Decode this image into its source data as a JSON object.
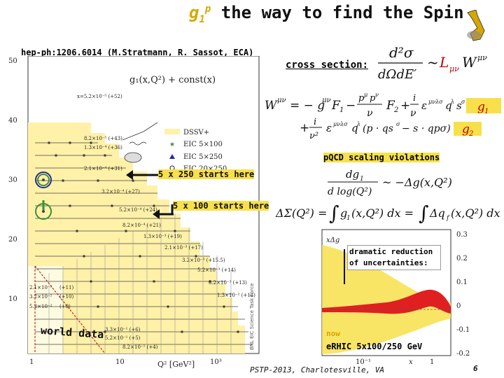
{
  "title": {
    "g1": "g",
    "sub": "1",
    "sup": "p",
    "rest": " the way to find the Spin"
  },
  "reference": "hep-ph:1206.6014 (M.Stratmann, R. Sassot, ECA)",
  "cross_section_label": "cross section:",
  "formulas": {
    "cross_section": "d²σ / dΩdE′ ~ L_μν W^μν",
    "hadron_tensor": "W^μν = −g^μν F1 − p^μ p^ν/ν F2 + i/ν ε^μνλσ q^λ s^σ g1",
    "hadron_tensor_line2": "+ i/ν² ε^μνλσ q^λ (p·qs^σ − s·qpσ) g2",
    "scaling": "dg1/d log(Q²) ~ −Δg(x,Q²)",
    "delta_sigma": "ΔΣ(Q²) = ∫ g1(x,Q²) dx = ∫ Δq_f(x,Q²) dx"
  },
  "pqcd_label": "pQCD scaling violations",
  "annotations": {
    "start_250": "5 x 250 starts here",
    "start_100": "5 x 100 starts here",
    "world_data": "world data",
    "dramatic": "dramatic reduction of uncertainties:",
    "now": "now",
    "erhic": "eRHIC 5x100/250 GeV"
  },
  "footer": "PSTP-2013, Charlotesville, VA",
  "page_number": "6",
  "left_plot": {
    "y_label": "g₁(x,Q²) + const(x)",
    "y_ticks": [
      "50",
      "40",
      "30",
      "20",
      "10"
    ],
    "x_ticks": [
      "1",
      "10",
      "10³"
    ],
    "x_label": "Q² [GeV²]",
    "legend": [
      "DSSV+",
      "EIC 5×100",
      "EIC 5×250",
      "EIC 20×250"
    ],
    "x_annotations": [
      "x=5.2×10⁻⁵ (+52)",
      "8.2×10⁻⁵ (+43)",
      "1.3×10⁻⁴ (+36)",
      "2.1×10⁻⁴ (+31)",
      "3.2×10⁻⁴ (+27)",
      "5.2×10⁻⁴ (+24)",
      "8.2×10⁻⁴ (+21)",
      "1.3×10⁻³ (+19)",
      "2.1×10⁻³ (+17)",
      "3.2×10⁻³ (+15.5)",
      "5.2×10⁻³ (+14)",
      "8.2×10⁻³ (+13)",
      "1.3×10⁻² (+12)"
    ],
    "lower_annotations": [
      "2.1×10⁻²",
      "3.2×10⁻²",
      "5.2×10⁻²",
      "(+11)",
      "(+10)",
      "(+9)",
      "3.3×10⁻¹ (+6)",
      "5.2×10⁻¹ (+5)",
      "8.2×10⁻¹ (+4)"
    ],
    "watermark": "BNL EIC Science Task Force",
    "colors": {
      "band": "#fff1a8",
      "points": "#444444",
      "circle_markers": "#3a8f3a",
      "circle_ring": "#2a2aa0"
    }
  },
  "right_plot": {
    "y_label": "xΔg",
    "y_ticks": [
      "0.3",
      "0.2",
      "0.1",
      "0",
      "-0.1",
      "-0.2"
    ],
    "x_ticks": [
      "10⁻¹",
      "1"
    ],
    "x_label": "x",
    "colors": {
      "dssv": "#f7e04a",
      "eic": "#e02020"
    }
  }
}
